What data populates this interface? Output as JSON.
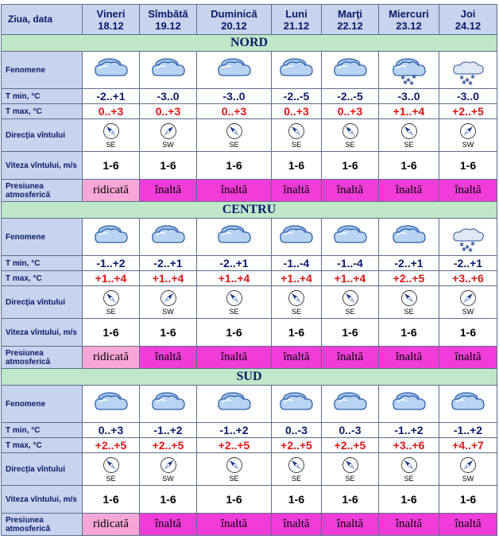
{
  "header": {
    "corner": "Ziua, data",
    "days": [
      {
        "name": "Vineri",
        "date": "18.12"
      },
      {
        "name": "Sîmbătă",
        "date": "19.12"
      },
      {
        "name": "Duminică",
        "date": "20.12"
      },
      {
        "name": "Luni",
        "date": "21.12"
      },
      {
        "name": "Marţi",
        "date": "22.12"
      },
      {
        "name": "Miercuri",
        "date": "23.12"
      },
      {
        "name": "Joi",
        "date": "24.12"
      }
    ]
  },
  "row_labels": {
    "fenomene": "Fenomene",
    "tmin": "T min, °C",
    "tmax": "T max, °C",
    "directia": "Direcţia vîntului",
    "viteza": "Viteza vîntului, m/s",
    "presiunea": "Presiunea atmosferică"
  },
  "regions": [
    {
      "name": "NORD",
      "fenomene": [
        "cloudy-icon",
        "cloudy-icon",
        "cloudy-icon",
        "cloudy-icon",
        "cloudy-icon",
        "cloudy-snow-icon",
        "partly-cloudy-snow-icon"
      ],
      "tmin": [
        "-2..+1",
        "-3..0",
        "-3..0",
        "-2..-5",
        "-2..-5",
        "-3..0",
        "-3..0"
      ],
      "tmax": [
        "0..+3",
        "0..+3",
        "0..+3",
        "0..+3",
        "0..+3",
        "+1..+4",
        "+2..+5"
      ],
      "dir": [
        "SE",
        "SW",
        "SE",
        "SE",
        "SE",
        "SE",
        "SW"
      ],
      "vit": [
        "1-6",
        "1-6",
        "1-6",
        "1-6",
        "1-6",
        "1-6",
        "1-6"
      ],
      "pres": [
        "ridicată",
        "înaltă",
        "înaltă",
        "înaltă",
        "înaltă",
        "înaltă",
        "înaltă"
      ]
    },
    {
      "name": "CENTRU",
      "fenomene": [
        "cloudy-icon",
        "cloudy-icon",
        "cloudy-icon",
        "cloudy-icon",
        "cloudy-icon",
        "cloudy-icon",
        "partly-cloudy-snow-icon"
      ],
      "tmin": [
        "-1..+2",
        "-2..+1",
        "-2..+1",
        "-1..-4",
        "-1..-4",
        "-2..+1",
        "-2..+1"
      ],
      "tmax": [
        "+1..+4",
        "+1..+4",
        "+1..+4",
        "+1..+4",
        "+1..+4",
        "+2..+5",
        "+3..+6"
      ],
      "dir": [
        "SE",
        "SW",
        "SE",
        "SE",
        "SE",
        "SE",
        "SW"
      ],
      "vit": [
        "1-6",
        "1-6",
        "1-6",
        "1-6",
        "1-6",
        "1-6",
        "1-6"
      ],
      "pres": [
        "ridicată",
        "înaltă",
        "înaltă",
        "înaltă",
        "înaltă",
        "înaltă",
        "înaltă"
      ]
    },
    {
      "name": "SUD",
      "fenomene": [
        "cloudy-icon",
        "cloudy-icon",
        "cloudy-icon",
        "cloudy-icon",
        "cloudy-icon",
        "cloudy-icon",
        "cloudy-icon"
      ],
      "tmin": [
        "0..+3",
        "-1..+2",
        "-1..+2",
        "0..-3",
        "0..-3",
        "-1..+2",
        "-1..+2"
      ],
      "tmax": [
        "+2..+5",
        "+2..+5",
        "+2..+5",
        "+2..+5",
        "+2..+5",
        "+3..+6",
        "+4..+7"
      ],
      "dir": [
        "SE",
        "SW",
        "SE",
        "SE",
        "SE",
        "SE",
        "SW"
      ],
      "vit": [
        "1-6",
        "1-6",
        "1-6",
        "1-6",
        "1-6",
        "1-6",
        "1-6"
      ],
      "pres": [
        "ridicată",
        "înaltă",
        "înaltă",
        "înaltă",
        "înaltă",
        "înaltă",
        "înaltă"
      ]
    }
  ],
  "colors": {
    "header_bg": "#c8d3ee",
    "region_bg": "#bfe8c8",
    "label_text": "#0b1b6a",
    "tmax_text": "#e21414",
    "pres_high": "#f7a7d7",
    "pres_very_high": "#f03cd8"
  }
}
